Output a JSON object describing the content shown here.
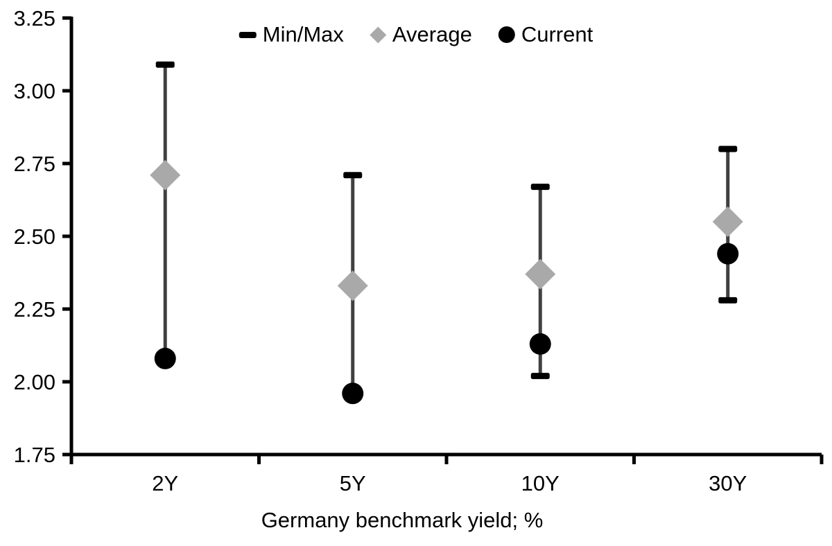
{
  "chart_data": {
    "type": "scatter",
    "subtype": "min-max-range-with-average-and-current",
    "xlabel": "Germany benchmark yield; %",
    "ylabel": "",
    "title": "",
    "categories": [
      "2Y",
      "5Y",
      "10Y",
      "30Y"
    ],
    "ylim": [
      1.75,
      3.25
    ],
    "ytick_values": [
      3.25,
      3.0,
      2.75,
      2.5,
      2.25,
      2.0,
      1.75
    ],
    "ytick_labels": [
      "3.25",
      "3.00",
      "2.75",
      "2.50",
      "2.25",
      "2.00",
      "1.75"
    ],
    "grid": false,
    "series": [
      {
        "name": "Min/Max",
        "type": "range",
        "min": [
          2.08,
          1.96,
          2.02,
          2.28
        ],
        "max": [
          3.09,
          2.71,
          2.67,
          2.8
        ]
      },
      {
        "name": "Average",
        "type": "diamond",
        "values": [
          2.71,
          2.33,
          2.37,
          2.55
        ]
      },
      {
        "name": "Current",
        "type": "circle",
        "values": [
          2.08,
          1.96,
          2.13,
          2.44
        ]
      }
    ],
    "legend": {
      "position": "top-center",
      "items": [
        {
          "label": "Min/Max",
          "marker": "dash"
        },
        {
          "label": "Average",
          "marker": "diamond"
        },
        {
          "label": "Current",
          "marker": "circle"
        }
      ]
    }
  },
  "colors": {
    "background": "#ffffff",
    "axis": "#000000",
    "text": "#000000",
    "range_line": "#404040",
    "cap": "#000000",
    "average": "#a9a9a9",
    "current": "#000000"
  }
}
